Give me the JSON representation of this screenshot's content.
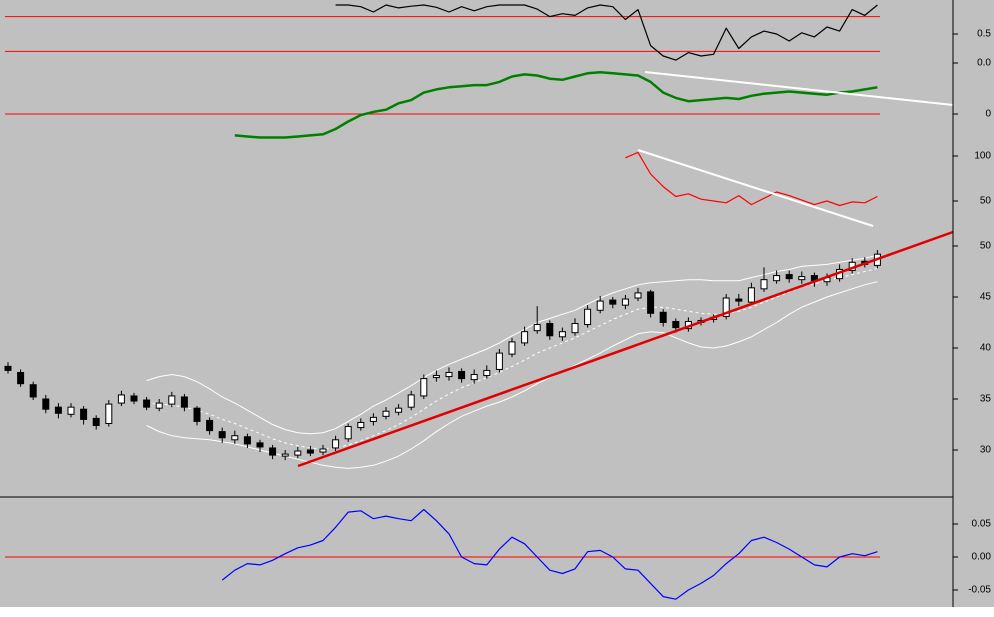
{
  "chart_data": [
    {
      "type": "line",
      "color": "#000000",
      "values": [
        null,
        null,
        null,
        null,
        null,
        null,
        null,
        null,
        null,
        null,
        null,
        null,
        null,
        null,
        null,
        null,
        null,
        null,
        null,
        null,
        null,
        null,
        null,
        null,
        null,
        null,
        1.0,
        1.0,
        0.97,
        0.88,
        1.0,
        0.95,
        0.98,
        1.0,
        0.96,
        0.88,
        0.97,
        0.9,
        0.97,
        1.0,
        1.0,
        1.0,
        0.93,
        0.8,
        0.85,
        0.82,
        0.95,
        1.0,
        0.97,
        0.75,
        0.92,
        0.3,
        0.12,
        0.05,
        0.18,
        0.12,
        0.15,
        0.6,
        0.25,
        0.45,
        0.55,
        0.5,
        0.38,
        0.52,
        0.45,
        0.62,
        0.55,
        0.92,
        0.82,
        1.0
      ],
      "ylim": [
        -0.1,
        1.05
      ],
      "yticks": [
        0.5,
        {
          "value": 0,
          "label": "0.0"
        }
      ],
      "hlines": [
        0.8,
        0.2
      ],
      "hline_color": "#ff0000"
    },
    {
      "type": "line",
      "color": "#008000",
      "values": [
        null,
        null,
        null,
        null,
        null,
        null,
        null,
        null,
        null,
        null,
        null,
        null,
        null,
        null,
        null,
        null,
        null,
        null,
        -0.2,
        -0.21,
        -0.22,
        -0.22,
        -0.22,
        -0.21,
        -0.2,
        -0.19,
        -0.14,
        -0.07,
        -0.01,
        0.02,
        0.04,
        0.1,
        0.13,
        0.2,
        0.23,
        0.25,
        0.26,
        0.27,
        0.27,
        0.3,
        0.35,
        0.37,
        0.36,
        0.33,
        0.32,
        0.35,
        0.38,
        0.39,
        0.38,
        0.37,
        0.36,
        0.3,
        0.2,
        0.15,
        0.12,
        0.13,
        0.14,
        0.15,
        0.14,
        0.17,
        0.19,
        0.2,
        0.21,
        0.2,
        0.19,
        0.18,
        0.2,
        0.21,
        0.23,
        0.25
      ],
      "ylim": [
        -0.25,
        0.45
      ],
      "yticks": [
        0
      ],
      "hlines": [
        0
      ],
      "hline_color": "#ff0000"
    },
    {
      "type": "line",
      "color": "#ff0000",
      "values": [
        null,
        null,
        null,
        null,
        null,
        null,
        null,
        null,
        null,
        null,
        null,
        null,
        null,
        null,
        null,
        null,
        null,
        null,
        null,
        null,
        null,
        null,
        null,
        null,
        null,
        null,
        null,
        null,
        null,
        null,
        null,
        null,
        null,
        null,
        null,
        null,
        null,
        null,
        null,
        null,
        null,
        null,
        null,
        null,
        null,
        null,
        null,
        null,
        null,
        98,
        104,
        80,
        66,
        55,
        58,
        52,
        50,
        48,
        56,
        46,
        53,
        60,
        56,
        51,
        46,
        50,
        45,
        49,
        48,
        55
      ],
      "ylim": [
        40,
        110
      ],
      "yticks": [
        100,
        50
      ],
      "hlines": []
    },
    {
      "type": "candlestick",
      "up_color": "#ffffff",
      "down_color": "#000000",
      "band_color": "#ffffff",
      "open": [
        38.2,
        37.6,
        36.4,
        35.0,
        34.2,
        33.5,
        34.0,
        33.1,
        32.6,
        34.6,
        35.3,
        34.9,
        34.1,
        34.5,
        35.2,
        34.1,
        32.9,
        31.8,
        31.0,
        31.3,
        30.7,
        30.2,
        29.4,
        29.5,
        30.0,
        29.8,
        30.2,
        31.1,
        32.2,
        32.8,
        33.3,
        33.7,
        34.2,
        35.3,
        37.1,
        37.2,
        37.7,
        36.9,
        37.3,
        37.9,
        39.4,
        40.5,
        41.7,
        42.4,
        41.1,
        41.5,
        42.3,
        43.7,
        44.7,
        44.2,
        44.9,
        45.5,
        43.5,
        42.6,
        41.9,
        42.5,
        42.8,
        43.1,
        44.8,
        44.5,
        45.8,
        46.6,
        47.2,
        46.7,
        47.1,
        46.5,
        46.8,
        47.6,
        48.5,
        48.1
      ],
      "high": [
        38.6,
        37.9,
        36.7,
        35.4,
        34.6,
        34.6,
        34.3,
        33.4,
        34.9,
        35.8,
        35.6,
        35.2,
        35.0,
        35.7,
        35.5,
        34.3,
        33.2,
        32.2,
        31.9,
        31.6,
        31.0,
        30.5,
        30.0,
        30.3,
        30.4,
        30.5,
        31.4,
        32.6,
        33.1,
        33.6,
        34.2,
        34.5,
        35.8,
        37.4,
        37.8,
        38.1,
        38.0,
        37.9,
        38.3,
        39.9,
        41.0,
        42.1,
        44.1,
        42.7,
        42.0,
        42.9,
        44.2,
        45.1,
        45.0,
        45.2,
        45.9,
        45.7,
        43.8,
        42.9,
        43.0,
        43.0,
        43.3,
        45.3,
        45.3,
        46.4,
        47.9,
        47.6,
        47.6,
        47.5,
        47.4,
        47.3,
        48.2,
        48.8,
        48.9,
        49.6
      ],
      "low": [
        37.5,
        36.2,
        34.9,
        33.6,
        33.1,
        33.2,
        32.5,
        32.0,
        32.3,
        34.3,
        34.5,
        33.9,
        33.8,
        34.2,
        33.8,
        32.4,
        31.5,
        30.7,
        30.6,
        30.2,
        29.8,
        29.1,
        29.0,
        29.2,
        29.4,
        29.5,
        29.9,
        30.8,
        31.9,
        32.4,
        33.0,
        33.4,
        33.9,
        35.0,
        36.7,
        36.8,
        36.6,
        36.5,
        37.0,
        37.6,
        39.1,
        40.2,
        41.4,
        40.8,
        40.7,
        41.2,
        42.0,
        43.4,
        43.9,
        43.8,
        44.6,
        43.0,
        42.1,
        41.5,
        41.6,
        42.2,
        42.5,
        42.8,
        44.1,
        44.2,
        45.5,
        46.3,
        46.4,
        46.3,
        46.0,
        46.1,
        46.5,
        47.3,
        47.9,
        47.8
      ],
      "close": [
        37.8,
        36.5,
        35.2,
        34.0,
        33.6,
        34.2,
        33.0,
        32.4,
        34.5,
        35.4,
        34.8,
        34.2,
        34.6,
        35.3,
        34.2,
        32.8,
        31.9,
        31.2,
        31.4,
        30.6,
        30.3,
        29.5,
        29.6,
        29.9,
        29.7,
        30.1,
        31.0,
        32.3,
        32.7,
        33.2,
        33.8,
        34.1,
        35.4,
        37.0,
        37.3,
        37.6,
        37.0,
        37.4,
        37.8,
        39.5,
        40.6,
        41.6,
        42.3,
        41.2,
        41.6,
        42.4,
        43.8,
        44.6,
        44.3,
        44.8,
        45.4,
        43.4,
        42.5,
        42.0,
        42.6,
        42.7,
        43.0,
        44.9,
        44.6,
        45.9,
        46.7,
        47.1,
        46.8,
        47.0,
        46.6,
        46.9,
        47.7,
        48.4,
        48.2,
        49.2
      ],
      "upper": [
        null,
        null,
        null,
        null,
        null,
        null,
        null,
        null,
        null,
        null,
        null,
        36.8,
        37.2,
        37.4,
        37.2,
        36.7,
        36.0,
        35.2,
        34.6,
        33.9,
        33.2,
        32.5,
        32.0,
        31.7,
        31.6,
        31.7,
        32.1,
        32.8,
        33.5,
        34.3,
        34.9,
        35.6,
        36.3,
        37.1,
        37.8,
        38.4,
        38.9,
        39.4,
        39.9,
        40.5,
        41.2,
        41.8,
        42.5,
        42.9,
        43.3,
        43.7,
        44.3,
        44.9,
        45.4,
        45.8,
        46.2,
        46.4,
        46.5,
        46.6,
        46.7,
        46.7,
        46.6,
        46.6,
        46.6,
        46.9,
        47.2,
        47.5,
        47.7,
        48.0,
        48.1,
        48.2,
        48.4,
        48.6,
        48.8,
        49.1
      ],
      "middle": [
        null,
        null,
        null,
        null,
        null,
        null,
        null,
        null,
        null,
        null,
        null,
        34.6,
        34.5,
        34.4,
        34.2,
        33.9,
        33.5,
        33.0,
        32.6,
        32.1,
        31.6,
        31.1,
        30.7,
        30.4,
        30.2,
        30.1,
        30.2,
        30.5,
        30.9,
        31.4,
        31.9,
        32.5,
        33.2,
        34.0,
        34.8,
        35.5,
        36.1,
        36.6,
        37.1,
        37.6,
        38.2,
        38.8,
        39.5,
        40.0,
        40.5,
        41.0,
        41.6,
        42.2,
        42.8,
        43.3,
        43.8,
        44.0,
        44.0,
        43.8,
        43.6,
        43.4,
        43.3,
        43.4,
        43.6,
        44.0,
        44.5,
        45.0,
        45.5,
        46.0,
        46.3,
        46.6,
        46.9,
        47.2,
        47.5,
        47.8
      ],
      "lower": [
        null,
        null,
        null,
        null,
        null,
        null,
        null,
        null,
        null,
        null,
        null,
        32.4,
        31.8,
        31.4,
        31.2,
        31.1,
        31.0,
        30.8,
        30.6,
        30.3,
        30.0,
        29.7,
        29.4,
        29.1,
        28.8,
        28.5,
        28.3,
        28.2,
        28.3,
        28.5,
        28.9,
        29.4,
        30.1,
        30.9,
        31.8,
        32.6,
        33.3,
        33.8,
        34.3,
        34.7,
        35.2,
        35.8,
        36.5,
        37.1,
        37.7,
        38.3,
        38.9,
        39.5,
        40.2,
        40.8,
        41.4,
        41.6,
        41.5,
        41.0,
        40.5,
        40.1,
        40.0,
        40.2,
        40.6,
        41.1,
        41.8,
        42.5,
        43.3,
        44.0,
        44.5,
        45.0,
        45.4,
        45.8,
        46.2,
        46.5
      ],
      "ylim": [
        25.5,
        51.5
      ],
      "yticks": [
        50,
        45,
        40,
        35,
        30
      ]
    },
    {
      "type": "line",
      "color": "#0000ff",
      "values": [
        null,
        null,
        null,
        null,
        null,
        null,
        null,
        null,
        null,
        null,
        null,
        null,
        null,
        null,
        null,
        null,
        null,
        -0.035,
        -0.02,
        -0.01,
        -0.012,
        -0.005,
        0.005,
        0.014,
        0.018,
        0.025,
        0.045,
        0.068,
        0.07,
        0.058,
        0.062,
        0.058,
        0.055,
        0.072,
        0.055,
        0.035,
        0.0,
        -0.01,
        -0.012,
        0.012,
        0.03,
        0.02,
        0.0,
        -0.02,
        -0.025,
        -0.018,
        0.008,
        0.01,
        0.0,
        -0.018,
        -0.02,
        -0.04,
        -0.06,
        -0.064,
        -0.05,
        -0.04,
        -0.028,
        -0.01,
        0.005,
        0.025,
        0.03,
        0.022,
        0.012,
        0.0,
        -0.012,
        -0.015,
        0.0,
        0.005,
        0.002,
        0.008
      ],
      "ylim": [
        -0.08,
        0.08
      ],
      "yticks": [
        {
          "value": 0.05,
          "label": "0.05"
        },
        {
          "value": 0,
          "label": "0.00"
        },
        {
          "value": -0.05,
          "label": "-0.05"
        }
      ],
      "hlines": [
        0
      ],
      "hline_color": "#ff0000"
    }
  ]
}
